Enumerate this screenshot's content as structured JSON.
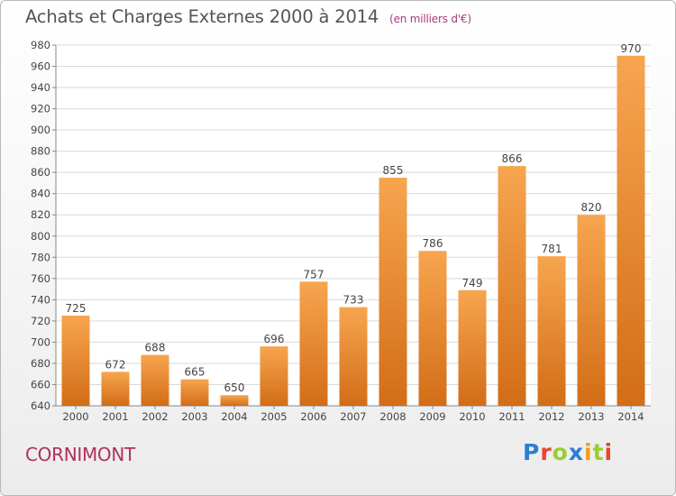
{
  "header": {
    "title": "Achats et Charges Externes 2000 à 2014",
    "subtitle": "(en milliers d'€)"
  },
  "footer": {
    "commune": "CORNIMONT",
    "logo_text": "Proxiti",
    "logo_colors": [
      "#2a7fd1",
      "#e8452c",
      "#9acd32",
      "#2a7fd1",
      "#f39c12",
      "#9acd32",
      "#e8452c"
    ]
  },
  "colors": {
    "bar_light": "#f7a54f",
    "bar_dark": "#d36d17",
    "grid": "#d9d9d9",
    "axis_text": "#444444"
  },
  "chart_data": {
    "type": "bar",
    "title": "Achats et Charges Externes 2000 à 2014",
    "subtitle": "(en milliers d'€)",
    "categories": [
      "2000",
      "2001",
      "2002",
      "2003",
      "2004",
      "2005",
      "2006",
      "2007",
      "2008",
      "2009",
      "2010",
      "2011",
      "2012",
      "2013",
      "2014"
    ],
    "values": [
      725,
      672,
      688,
      665,
      650,
      696,
      757,
      733,
      855,
      786,
      749,
      866,
      781,
      820,
      970
    ],
    "ylim": [
      640,
      980
    ],
    "yticks": [
      640,
      660,
      680,
      700,
      720,
      740,
      760,
      780,
      800,
      820,
      840,
      860,
      880,
      900,
      920,
      940,
      960,
      980
    ],
    "grid": true,
    "xlabel": "",
    "ylabel": ""
  }
}
